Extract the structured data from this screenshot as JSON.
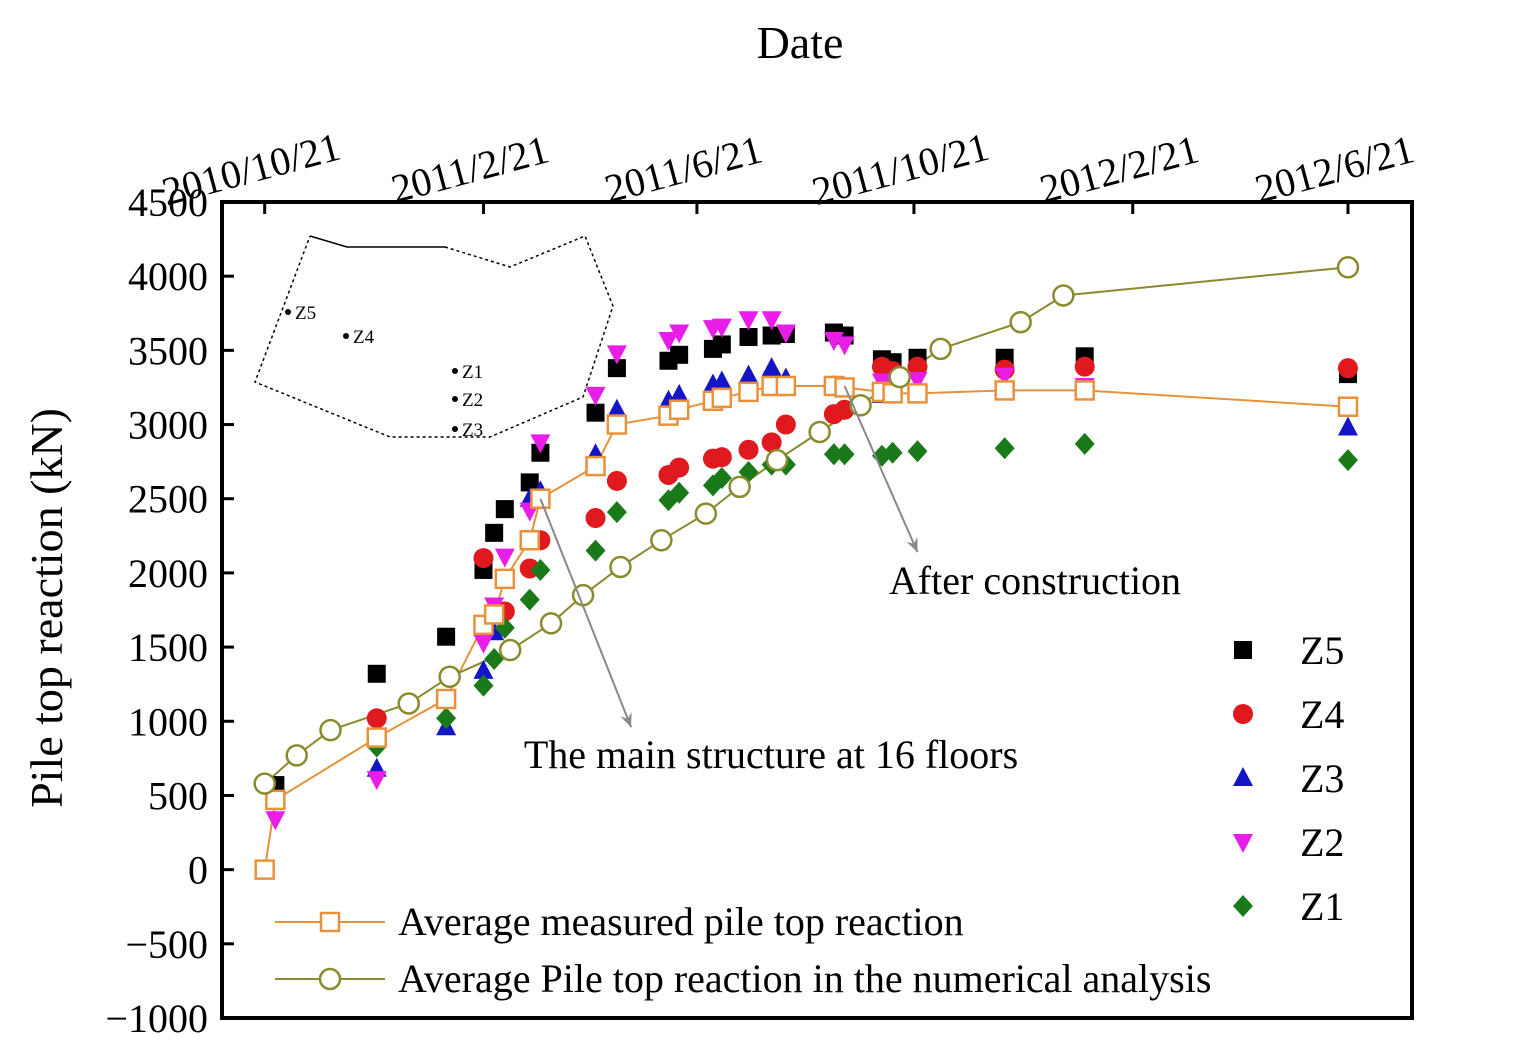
{
  "chart_data": {
    "type": "scatter",
    "title": "",
    "xlabel": "Date",
    "ylabel": "Pile top reaction (kN)",
    "xlim": [
      "2010-09-27",
      "2012-07-27"
    ],
    "ylim": [
      -1000,
      4500
    ],
    "x_ticks": [
      "2010-10-21",
      "2011-02-21",
      "2011-06-21",
      "2011-10-21",
      "2012-02-21",
      "2012-06-21"
    ],
    "x_tick_labels": [
      "2010/10/21",
      "2011/2/21",
      "2011/6/21",
      "2011/10/21",
      "2012/2/21",
      "2012/6/21"
    ],
    "y_ticks": [
      -1000,
      -500,
      0,
      500,
      1000,
      1500,
      2000,
      2500,
      3000,
      3500,
      4000,
      4500
    ],
    "y_tick_labels": [
      "−1000",
      "−500",
      "0",
      "500",
      "1000",
      "1500",
      "2000",
      "2500",
      "3000",
      "3500",
      "4000",
      "4500"
    ],
    "series": [
      {
        "name": "Z5",
        "marker": "square",
        "color": "#000000",
        "points": [
          [
            "2010-10-27",
            570
          ],
          [
            "2010-12-23",
            1320
          ],
          [
            "2011-01-31",
            1570
          ],
          [
            "2011-02-21",
            2020
          ],
          [
            "2011-02-27",
            2270
          ],
          [
            "2011-03-05",
            2430
          ],
          [
            "2011-03-19",
            2610
          ],
          [
            "2011-03-25",
            2810
          ],
          [
            "2011-04-25",
            3080
          ],
          [
            "2011-05-07",
            3380
          ],
          [
            "2011-06-05",
            3430
          ],
          [
            "2011-06-11",
            3470
          ],
          [
            "2011-06-30",
            3510
          ],
          [
            "2011-07-05",
            3540
          ],
          [
            "2011-07-20",
            3590
          ],
          [
            "2011-08-02",
            3600
          ],
          [
            "2011-08-10",
            3610
          ],
          [
            "2011-09-06",
            3620
          ],
          [
            "2011-09-12",
            3600
          ],
          [
            "2011-10-03",
            3440
          ],
          [
            "2011-10-09",
            3420
          ],
          [
            "2011-10-23",
            3450
          ],
          [
            "2011-12-11",
            3450
          ],
          [
            "2012-01-25",
            3460
          ],
          [
            "2012-06-21",
            3340
          ]
        ]
      },
      {
        "name": "Z4",
        "marker": "circle",
        "color": "#e0191e",
        "points": [
          [
            "2010-12-23",
            1020
          ],
          [
            "2011-02-21",
            2100
          ],
          [
            "2011-03-05",
            1740
          ],
          [
            "2011-03-19",
            2030
          ],
          [
            "2011-03-25",
            2220
          ],
          [
            "2011-04-25",
            2370
          ],
          [
            "2011-05-07",
            2620
          ],
          [
            "2011-06-05",
            2660
          ],
          [
            "2011-06-11",
            2710
          ],
          [
            "2011-06-30",
            2770
          ],
          [
            "2011-07-05",
            2780
          ],
          [
            "2011-07-20",
            2830
          ],
          [
            "2011-08-02",
            2880
          ],
          [
            "2011-08-10",
            3000
          ],
          [
            "2011-09-06",
            3070
          ],
          [
            "2011-09-12",
            3100
          ],
          [
            "2011-10-03",
            3390
          ],
          [
            "2011-10-09",
            3360
          ],
          [
            "2011-10-23",
            3390
          ],
          [
            "2011-12-11",
            3370
          ],
          [
            "2012-01-25",
            3390
          ],
          [
            "2012-06-21",
            3380
          ]
        ]
      },
      {
        "name": "Z3",
        "marker": "triangle-up",
        "color": "#1515c8",
        "points": [
          [
            "2010-12-23",
            680
          ],
          [
            "2011-01-31",
            960
          ],
          [
            "2011-02-21",
            1340
          ],
          [
            "2011-02-27",
            1600
          ],
          [
            "2011-03-05",
            1950
          ],
          [
            "2011-03-19",
            2500
          ],
          [
            "2011-03-25",
            2550
          ],
          [
            "2011-04-25",
            2800
          ],
          [
            "2011-05-07",
            3100
          ],
          [
            "2011-06-05",
            3160
          ],
          [
            "2011-06-11",
            3200
          ],
          [
            "2011-06-30",
            3270
          ],
          [
            "2011-07-05",
            3290
          ],
          [
            "2011-07-20",
            3330
          ],
          [
            "2011-08-02",
            3380
          ],
          [
            "2011-08-10",
            3310
          ],
          [
            "2011-09-06",
            3260
          ],
          [
            "2011-09-12",
            3250
          ],
          [
            "2011-10-03",
            3200
          ],
          [
            "2011-10-09",
            3210
          ],
          [
            "2011-10-23",
            3240
          ],
          [
            "2011-12-11",
            3250
          ],
          [
            "2012-01-25",
            3230
          ],
          [
            "2012-06-21",
            2980
          ]
        ]
      },
      {
        "name": "Z2",
        "marker": "triangle-down",
        "color": "#e81ee8",
        "points": [
          [
            "2010-10-27",
            340
          ],
          [
            "2010-12-23",
            610
          ],
          [
            "2011-02-21",
            1530
          ],
          [
            "2011-02-27",
            1780
          ],
          [
            "2011-03-05",
            2110
          ],
          [
            "2011-03-19",
            2420
          ],
          [
            "2011-03-25",
            2880
          ],
          [
            "2011-04-25",
            3200
          ],
          [
            "2011-05-07",
            3480
          ],
          [
            "2011-06-05",
            3570
          ],
          [
            "2011-06-11",
            3620
          ],
          [
            "2011-06-30",
            3650
          ],
          [
            "2011-07-05",
            3660
          ],
          [
            "2011-07-20",
            3710
          ],
          [
            "2011-08-02",
            3710
          ],
          [
            "2011-08-10",
            3620
          ],
          [
            "2011-09-06",
            3570
          ],
          [
            "2011-09-12",
            3540
          ],
          [
            "2011-10-03",
            3290
          ],
          [
            "2011-10-09",
            3270
          ],
          [
            "2011-10-23",
            3300
          ],
          [
            "2011-12-11",
            3330
          ],
          [
            "2012-01-25",
            3260
          ]
        ]
      },
      {
        "name": "Z1",
        "marker": "diamond",
        "color": "#1a7a1a",
        "points": [
          [
            "2010-12-23",
            830
          ],
          [
            "2011-01-31",
            1020
          ],
          [
            "2011-02-21",
            1240
          ],
          [
            "2011-02-27",
            1420
          ],
          [
            "2011-03-05",
            1630
          ],
          [
            "2011-03-19",
            1820
          ],
          [
            "2011-03-25",
            2020
          ],
          [
            "2011-04-25",
            2150
          ],
          [
            "2011-05-07",
            2410
          ],
          [
            "2011-06-05",
            2490
          ],
          [
            "2011-06-11",
            2540
          ],
          [
            "2011-06-30",
            2590
          ],
          [
            "2011-07-05",
            2640
          ],
          [
            "2011-07-20",
            2680
          ],
          [
            "2011-08-02",
            2730
          ],
          [
            "2011-08-10",
            2730
          ],
          [
            "2011-09-06",
            2800
          ],
          [
            "2011-09-12",
            2800
          ],
          [
            "2011-10-03",
            2790
          ],
          [
            "2011-10-09",
            2810
          ],
          [
            "2011-10-23",
            2820
          ],
          [
            "2011-12-11",
            2840
          ],
          [
            "2012-01-25",
            2870
          ],
          [
            "2012-06-21",
            2760
          ]
        ]
      },
      {
        "name": "Average measured pile top reaction",
        "marker": "open-square",
        "line": true,
        "color": "#e8913a",
        "points": [
          [
            "2010-10-21",
            0
          ],
          [
            "2010-10-27",
            470
          ],
          [
            "2010-12-23",
            890
          ],
          [
            "2011-01-31",
            1150
          ],
          [
            "2011-02-21",
            1650
          ],
          [
            "2011-02-27",
            1720
          ],
          [
            "2011-03-05",
            1960
          ],
          [
            "2011-03-19",
            2220
          ],
          [
            "2011-03-25",
            2500
          ],
          [
            "2011-04-25",
            2720
          ],
          [
            "2011-05-07",
            3000
          ],
          [
            "2011-06-05",
            3060
          ],
          [
            "2011-06-11",
            3100
          ],
          [
            "2011-06-30",
            3160
          ],
          [
            "2011-07-05",
            3180
          ],
          [
            "2011-07-20",
            3220
          ],
          [
            "2011-08-02",
            3260
          ],
          [
            "2011-08-10",
            3260
          ],
          [
            "2011-09-06",
            3260
          ],
          [
            "2011-09-12",
            3250
          ],
          [
            "2011-10-03",
            3220
          ],
          [
            "2011-10-09",
            3210
          ],
          [
            "2011-10-23",
            3210
          ],
          [
            "2011-12-11",
            3230
          ],
          [
            "2012-01-25",
            3230
          ],
          [
            "2012-06-21",
            3120
          ]
        ]
      },
      {
        "name": "Average Pile top reaction in the numerical analysis",
        "marker": "open-circle",
        "line": true,
        "color": "#8a8a2e",
        "points": [
          [
            "2010-10-21",
            580
          ],
          [
            "2010-11-08",
            770
          ],
          [
            "2010-11-27",
            940
          ],
          [
            "2011-01-10",
            1120
          ],
          [
            "2011-02-02",
            1300
          ],
          [
            "2011-03-08",
            1480
          ],
          [
            "2011-03-31",
            1660
          ],
          [
            "2011-04-18",
            1850
          ],
          [
            "2011-05-09",
            2040
          ],
          [
            "2011-06-01",
            2220
          ],
          [
            "2011-06-26",
            2400
          ],
          [
            "2011-07-15",
            2580
          ],
          [
            "2011-08-05",
            2760
          ],
          [
            "2011-08-29",
            2950
          ],
          [
            "2011-09-21",
            3130
          ],
          [
            "2011-10-13",
            3320
          ],
          [
            "2011-11-05",
            3510
          ],
          [
            "2011-12-20",
            3690
          ],
          [
            "2012-01-13",
            3870
          ],
          [
            "2012-06-21",
            4060
          ]
        ]
      }
    ],
    "legend_right": {
      "placement": "right",
      "entries": [
        "Z5",
        "Z4",
        "Z3",
        "Z2",
        "Z1"
      ]
    },
    "legend_bottom": {
      "placement": "bottom-left",
      "entries": [
        "Average measured pile top reaction",
        "Average Pile top reaction in the numerical analysis"
      ]
    },
    "annotations": [
      {
        "text": "After construction",
        "arrow_from": [
          "2011-09-12",
          3260
        ],
        "arrow_to": [
          "2011-10-23",
          2140
        ]
      },
      {
        "text": "The main structure at 16 floors",
        "arrow_from": [
          "2011-03-25",
          2500
        ],
        "arrow_to": [
          "2011-05-15",
          960
        ]
      }
    ],
    "inset": {
      "type": "plan-sketch",
      "labels": [
        "Z5",
        "Z4",
        "Z1",
        "Z2",
        "Z3"
      ]
    }
  }
}
